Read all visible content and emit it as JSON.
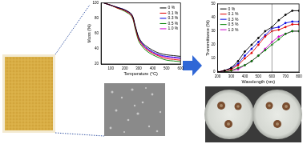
{
  "chart_data": [
    {
      "type": "line",
      "xlabel": "Temperature (°C)",
      "ylabel": "Mass (%)",
      "x": [
        50,
        100,
        150,
        200,
        250,
        275,
        300,
        325,
        350,
        400,
        450,
        500,
        550,
        600
      ],
      "series": [
        {
          "name": "0 %",
          "color": "#000000",
          "values": [
            100,
            97,
            94,
            91,
            85,
            70,
            55,
            48,
            44,
            38,
            34,
            32,
            31,
            30
          ]
        },
        {
          "name": "0.1 %",
          "color": "#e00000",
          "values": [
            100,
            97,
            93,
            90,
            83,
            68,
            52,
            45,
            40,
            34,
            30,
            27,
            26,
            25
          ]
        },
        {
          "name": "0.3 %",
          "color": "#0000e0",
          "values": [
            100,
            97,
            94,
            91,
            84,
            69,
            54,
            47,
            42,
            36,
            32,
            30,
            29,
            28
          ]
        },
        {
          "name": "0.5 %",
          "color": "#008000",
          "values": [
            100,
            97,
            93,
            89,
            82,
            66,
            50,
            43,
            38,
            32,
            28,
            25,
            24,
            23
          ]
        },
        {
          "name": "1.0 %",
          "color": "#d000d0",
          "values": [
            100,
            97,
            94,
            90,
            84,
            68,
            53,
            46,
            41,
            35,
            31,
            29,
            28,
            27
          ]
        }
      ],
      "xlim": [
        30,
        600
      ],
      "xticks": [
        100,
        200,
        300,
        400,
        500,
        600
      ],
      "ylim": [
        20,
        100
      ],
      "yticks": [
        20,
        40,
        60,
        80,
        100
      ],
      "legend": "upper right"
    },
    {
      "type": "line",
      "xlabel": "Wavelength (nm)",
      "ylabel": "Transmittance (%)",
      "x": [
        200,
        250,
        300,
        350,
        400,
        450,
        500,
        550,
        600,
        650,
        700,
        750,
        800
      ],
      "series": [
        {
          "name": "0 %",
          "color": "#000000",
          "marker": "circle",
          "values": [
            0,
            1,
            3,
            8,
            15,
            20,
            25,
            30,
            33,
            38,
            42,
            45,
            45
          ]
        },
        {
          "name": "0.1 %",
          "color": "#e00000",
          "marker": "circle",
          "values": [
            0,
            1,
            2,
            5,
            10,
            14,
            20,
            26,
            30,
            31,
            33,
            35,
            35
          ]
        },
        {
          "name": "0.3 %",
          "color": "#0000e0",
          "marker": "circle",
          "values": [
            0,
            1,
            3,
            6,
            12,
            17,
            22,
            27,
            32,
            33,
            36,
            37,
            37
          ]
        },
        {
          "name": "0.5 %",
          "color": "#008000",
          "marker": "circle",
          "values": [
            0,
            0,
            1,
            3,
            5,
            8,
            12,
            16,
            20,
            24,
            28,
            30,
            30
          ]
        },
        {
          "name": "1.0 %",
          "color": "#d000d0",
          "marker": "circle",
          "values": [
            0,
            0,
            1,
            2,
            5,
            8,
            12,
            17,
            22,
            26,
            28,
            30,
            30
          ]
        }
      ],
      "xlim": [
        200,
        800
      ],
      "xticks": [
        200,
        300,
        400,
        500,
        600,
        700,
        800
      ],
      "ylim": [
        0,
        50
      ],
      "yticks": [
        0,
        10,
        20,
        30,
        40,
        50
      ],
      "vline": 600,
      "legend": "upper left"
    }
  ]
}
